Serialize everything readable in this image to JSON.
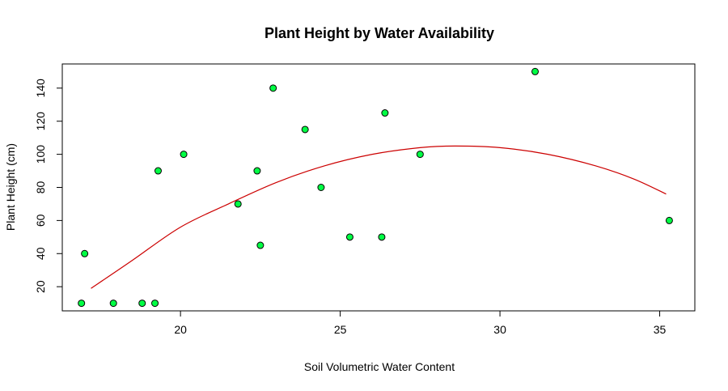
{
  "chart_data": {
    "type": "scatter",
    "title": "Plant Height by Water Availability",
    "xlabel": "Soil Volumetric Water Content",
    "ylabel": "Plant Height (cm)",
    "xlim": [
      16.3,
      36.1
    ],
    "ylim": [
      5.4,
      154.6
    ],
    "xticks": [
      20,
      25,
      30,
      35
    ],
    "yticks": [
      20,
      40,
      60,
      80,
      100,
      120,
      140
    ],
    "grid": false,
    "legend": "none",
    "point_fill": "#00ff44",
    "point_stroke": "#000000",
    "curve_color": "#cc0000",
    "points": [
      {
        "x": 16.9,
        "y": 10
      },
      {
        "x": 17.0,
        "y": 40
      },
      {
        "x": 17.9,
        "y": 10
      },
      {
        "x": 18.8,
        "y": 10
      },
      {
        "x": 19.2,
        "y": 10
      },
      {
        "x": 19.3,
        "y": 90
      },
      {
        "x": 20.1,
        "y": 100
      },
      {
        "x": 21.8,
        "y": 70
      },
      {
        "x": 22.4,
        "y": 90
      },
      {
        "x": 22.5,
        "y": 45
      },
      {
        "x": 22.9,
        "y": 140
      },
      {
        "x": 23.9,
        "y": 115
      },
      {
        "x": 24.4,
        "y": 80
      },
      {
        "x": 25.3,
        "y": 50
      },
      {
        "x": 26.3,
        "y": 50
      },
      {
        "x": 26.4,
        "y": 125
      },
      {
        "x": 27.5,
        "y": 100
      },
      {
        "x": 31.1,
        "y": 150
      },
      {
        "x": 35.3,
        "y": 60
      }
    ],
    "fit_curve": [
      {
        "x": 17.2,
        "y": 19
      },
      {
        "x": 18.5,
        "y": 36
      },
      {
        "x": 20.0,
        "y": 56
      },
      {
        "x": 21.5,
        "y": 70
      },
      {
        "x": 23.0,
        "y": 83
      },
      {
        "x": 24.5,
        "y": 93
      },
      {
        "x": 26.0,
        "y": 100
      },
      {
        "x": 27.5,
        "y": 104
      },
      {
        "x": 28.6,
        "y": 105
      },
      {
        "x": 30.0,
        "y": 104
      },
      {
        "x": 31.5,
        "y": 100
      },
      {
        "x": 33.0,
        "y": 93
      },
      {
        "x": 34.2,
        "y": 85
      },
      {
        "x": 35.2,
        "y": 76
      }
    ]
  }
}
